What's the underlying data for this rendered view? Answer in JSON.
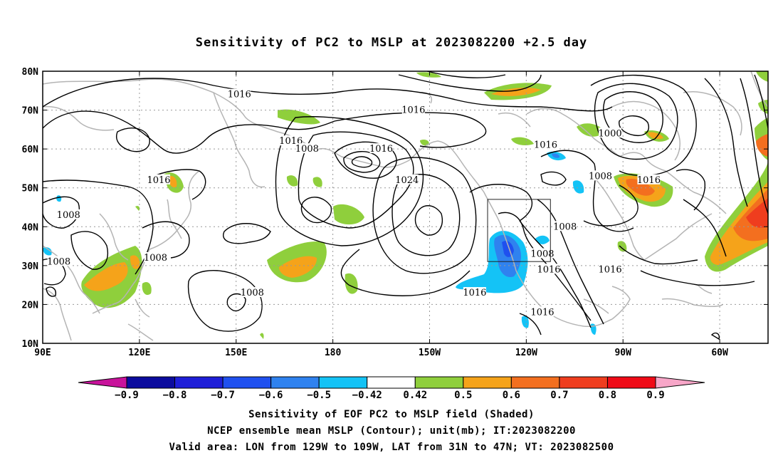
{
  "title": "Sensitivity of PC2 to MSLP at 2023082200 +2.5 day",
  "map": {
    "lat_labels": [
      "80N",
      "70N",
      "60N",
      "50N",
      "40N",
      "30N",
      "20N",
      "10N"
    ],
    "lon_labels": [
      "90E",
      "120E",
      "150E",
      "180",
      "150W",
      "120W",
      "90W",
      "60W"
    ],
    "lat_range": [
      10,
      80
    ],
    "lon_range": [
      90,
      315
    ],
    "grid": "dotted",
    "valid_box": {
      "lon": [
        231,
        251
      ],
      "lat": [
        31,
        47
      ]
    }
  },
  "contours": {
    "labels": [
      {
        "text": "1016",
        "lon": 151,
        "lat": 74
      },
      {
        "text": "1016",
        "lon": 205,
        "lat": 70
      },
      {
        "text": "1016",
        "lon": 167,
        "lat": 62
      },
      {
        "text": "1008",
        "lon": 172,
        "lat": 60
      },
      {
        "text": "1016",
        "lon": 195,
        "lat": 60
      },
      {
        "text": "1016",
        "lon": 246,
        "lat": 61
      },
      {
        "text": "1000",
        "lon": 266,
        "lat": 64
      },
      {
        "text": "1024",
        "lon": 203,
        "lat": 52
      },
      {
        "text": "1016",
        "lon": 126,
        "lat": 52
      },
      {
        "text": "1008",
        "lon": 263,
        "lat": 53
      },
      {
        "text": "1016",
        "lon": 278,
        "lat": 52
      },
      {
        "text": "1008",
        "lon": 98,
        "lat": 43
      },
      {
        "text": "1008",
        "lon": 252,
        "lat": 40
      },
      {
        "text": "1008",
        "lon": 125,
        "lat": 32
      },
      {
        "text": "1008",
        "lon": 95,
        "lat": 31
      },
      {
        "text": "1008",
        "lon": 245,
        "lat": 33
      },
      {
        "text": "1016",
        "lon": 247,
        "lat": 29
      },
      {
        "text": "1016",
        "lon": 266,
        "lat": 29
      },
      {
        "text": "1008",
        "lon": 155,
        "lat": 23
      },
      {
        "text": "1016",
        "lon": 224,
        "lat": 23
      },
      {
        "text": "1016",
        "lon": 245,
        "lat": 18
      }
    ]
  },
  "colorbar": {
    "labels": [
      "-0.9",
      "-0.8",
      "-0.7",
      "-0.6",
      "-0.5",
      "-0.42",
      "0.42",
      "0.5",
      "0.6",
      "0.7",
      "0.8",
      "0.9"
    ],
    "colors": [
      "#0b0b9e",
      "#1e1ed8",
      "#1f50ef",
      "#2f82ef",
      "#14c3f6",
      "#ffffff",
      "#8fcf3c",
      "#f5a31a",
      "#f36f1f",
      "#ef3d1e",
      "#f00a16"
    ],
    "end_low": "#c8139b",
    "end_high": "#f7a6c8"
  },
  "captions": {
    "line1": "Sensitivity of EOF PC2 to MSLP field (Shaded)",
    "line2": "NCEP ensemble mean MSLP (Contour); unit(mb); IT:2023082200",
    "line3": "Valid area: LON from 129W to 109W, LAT from 31N to 47N; VT: 2023082500"
  },
  "colors": {
    "contour": "#000000",
    "coast": "#b4b4b4",
    "grid": "#999999"
  }
}
